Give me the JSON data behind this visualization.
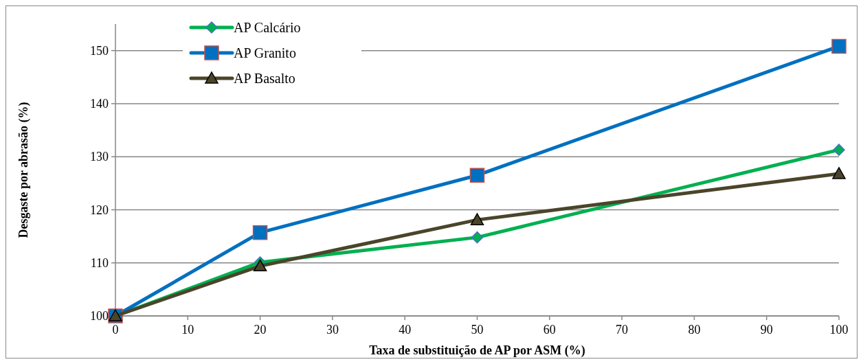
{
  "chart_data": {
    "type": "line",
    "xlabel": "Taxa de substituição de AP por ASM (%)",
    "ylabel": "Desgaste por abrasão (%)",
    "x": [
      0,
      20,
      50,
      100
    ],
    "series": [
      {
        "name": "AP Calcário",
        "color": "#00b050",
        "marker": "diamond",
        "values": [
          100,
          110.1,
          114.8,
          131.3
        ]
      },
      {
        "name": "AP Granito",
        "color": "#0070c0",
        "marker": "square",
        "values": [
          100,
          115.7,
          126.5,
          150.8
        ]
      },
      {
        "name": "AP Basalto",
        "color": "#4a452a",
        "marker": "triangle",
        "values": [
          100,
          109.4,
          118.1,
          126.8
        ]
      }
    ],
    "xlim": [
      0,
      100
    ],
    "xticks": [
      0,
      10,
      20,
      30,
      40,
      50,
      60,
      70,
      80,
      90,
      100
    ],
    "ylim": [
      100,
      155
    ],
    "yticks": [
      100,
      110,
      120,
      130,
      140,
      150
    ],
    "grid": "y",
    "legend": "top left",
    "line_style": "solid"
  }
}
